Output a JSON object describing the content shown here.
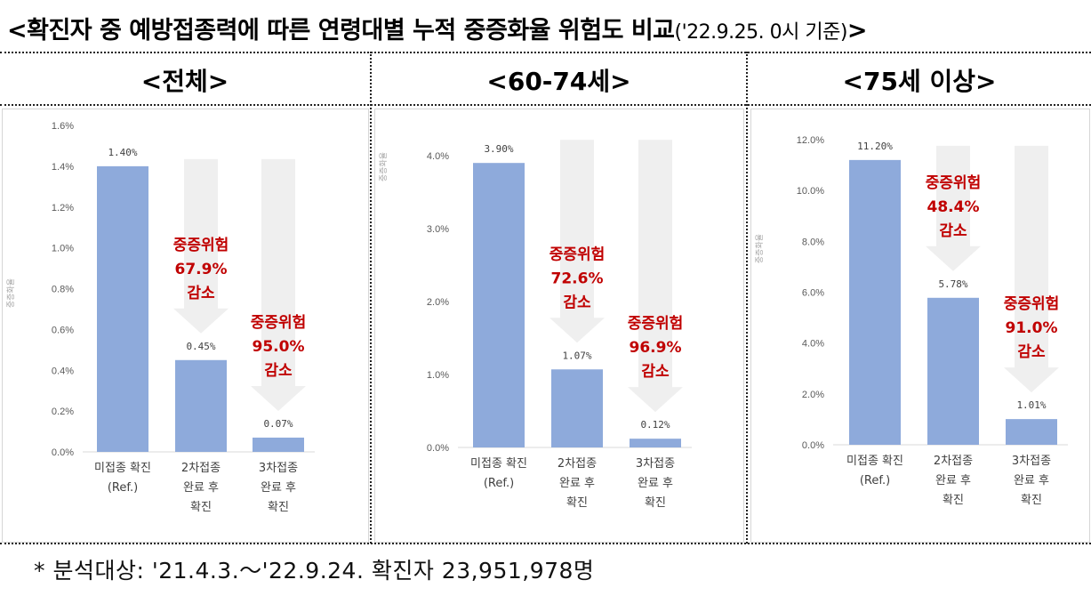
{
  "header": {
    "title_main": "<확진자 중 예방접종력에 따른 연령대별 누적 중증화율 위험도 비교",
    "title_date": "('22.9.25. 0시 기준)",
    "title_end": ">"
  },
  "footnote": "* 분석대상: '21.4.3.～'22.9.24. 확진자 23,951,978명",
  "colors": {
    "bar": "#8eaadb",
    "arrow": "#efefef",
    "annotation": "#c00000",
    "axis": "#d9d9d9",
    "tick_text": "#595959"
  },
  "chart_data": [
    {
      "type": "bar",
      "panel_title": "<전체>",
      "ylabel": "중증화율",
      "ylim": [
        0,
        1.6
      ],
      "yticks": [
        "0.0%",
        "0.2%",
        "0.4%",
        "0.6%",
        "0.8%",
        "1.0%",
        "1.2%",
        "1.4%",
        "1.6%"
      ],
      "categories": [
        [
          "미접종 확진",
          "(Ref.)"
        ],
        [
          "2차접종",
          "완료 후",
          "확진"
        ],
        [
          "3차접종",
          "완료 후",
          "확진"
        ]
      ],
      "values": [
        1.4,
        0.45,
        0.07
      ],
      "data_labels": [
        "1.40%",
        "0.45%",
        "0.07%"
      ],
      "annotations": [
        null,
        [
          "중증위험",
          "67.9%",
          "감소"
        ],
        [
          "중증위험",
          "95.0%",
          "감소"
        ]
      ]
    },
    {
      "type": "bar",
      "panel_title": "<60-74세>",
      "ylabel": "중증화율",
      "ylim": [
        0,
        4.0
      ],
      "yticks": [
        "0.0%",
        "1.0%",
        "2.0%",
        "3.0%",
        "4.0%"
      ],
      "categories": [
        [
          "미접종 확진",
          "(Ref.)"
        ],
        [
          "2차접종",
          "완료 후",
          "확진"
        ],
        [
          "3차접종",
          "완료 후",
          "확진"
        ]
      ],
      "values": [
        3.9,
        1.07,
        0.12
      ],
      "data_labels": [
        "3.90%",
        "1.07%",
        "0.12%"
      ],
      "annotations": [
        null,
        [
          "중증위험",
          "72.6%",
          "감소"
        ],
        [
          "중증위험",
          "96.9%",
          "감소"
        ]
      ]
    },
    {
      "type": "bar",
      "panel_title": "<75세 이상>",
      "ylabel": "중증화율",
      "ylim": [
        0,
        12.0
      ],
      "yticks": [
        "0.0%",
        "2.0%",
        "4.0%",
        "6.0%",
        "8.0%",
        "10.0%",
        "12.0%"
      ],
      "categories": [
        [
          "미접종 확진",
          "(Ref.)"
        ],
        [
          "2차접종",
          "완료 후",
          "확진"
        ],
        [
          "3차접종",
          "완료 후",
          "확진"
        ]
      ],
      "values": [
        11.2,
        5.78,
        1.01
      ],
      "data_labels": [
        "11.20%",
        "5.78%",
        "1.01%"
      ],
      "annotations": [
        null,
        [
          "중증위험",
          "48.4%",
          "감소"
        ],
        [
          "중증위험",
          "91.0%",
          "감소"
        ]
      ]
    }
  ]
}
